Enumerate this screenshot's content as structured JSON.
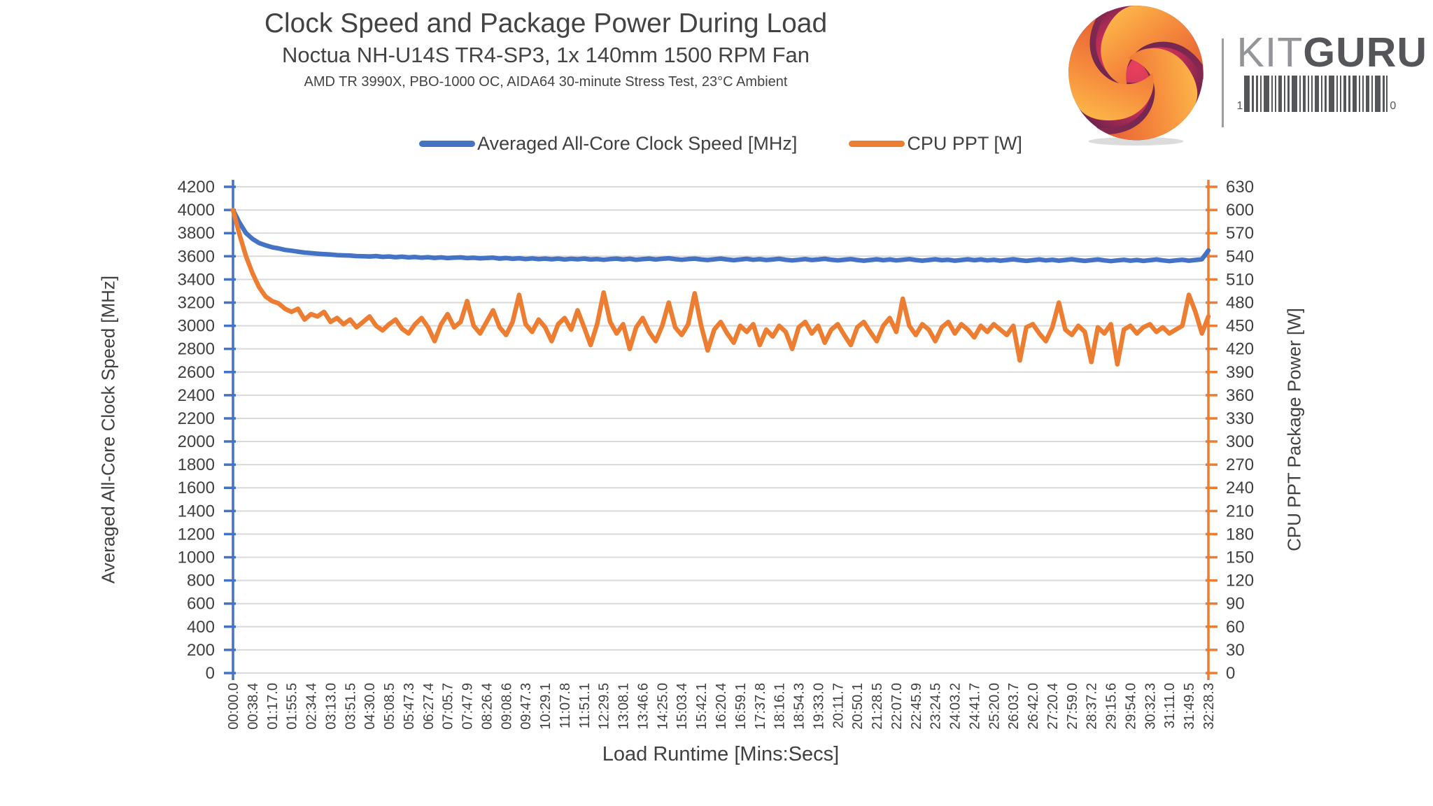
{
  "header": {
    "title": "Clock Speed and Package Power During Load",
    "subtitle": "Noctua NH-U14S TR4-SP3, 1x 140mm 1500 RPM Fan",
    "details": "AMD TR 3990X, PBO-1000 OC, AIDA64 30-minute Stress Test, 23°C Ambient"
  },
  "logo": {
    "brand_prefix": "KIT",
    "brand_suffix": "GURU",
    "barcode_left_digit": "1",
    "barcode_right_digit": "0"
  },
  "legend": [
    {
      "label": "Averaged All-Core Clock Speed [MHz]",
      "color": "#4472C4"
    },
    {
      "label": "CPU PPT [W]",
      "color": "#ED7D31"
    }
  ],
  "colors": {
    "clock_series": "#4472C4",
    "power_series": "#ED7D31",
    "gridline": "#D9D9D9",
    "tick_text": "#404040"
  },
  "chart_data": {
    "type": "line",
    "title": "Clock Speed and Package Power During Load",
    "grid": true,
    "legend_position": "top",
    "x_axis": {
      "label": "Load Runtime [Mins:Secs]",
      "tick_labels": [
        "00:00.0",
        "00:38.4",
        "01:17.0",
        "01:55.5",
        "02:34.4",
        "03:13.0",
        "03:51.5",
        "04:30.0",
        "05:08.5",
        "05:47.3",
        "06:27.4",
        "07:05.7",
        "07:47.9",
        "08:26.4",
        "09:08.6",
        "09:47.3",
        "10:29.1",
        "11:07.8",
        "11:51.1",
        "12:29.5",
        "13:08.1",
        "13:46.6",
        "14:25.0",
        "15:03.4",
        "15:42.1",
        "16:20.4",
        "16:59.1",
        "17:37.8",
        "18:16.1",
        "18:54.3",
        "19:33.0",
        "20:11.7",
        "20:50.1",
        "21:28.5",
        "22:07.0",
        "22:45.9",
        "23:24.5",
        "24:03.2",
        "24:41.7",
        "25:20.0",
        "26:03.7",
        "26:42.0",
        "27:20.4",
        "27:59.0",
        "28:37.2",
        "29:15.6",
        "29:54.0",
        "30:32.3",
        "31:11.0",
        "31:49.5",
        "32:28.3"
      ]
    },
    "y_left": {
      "label": "Averaged All-Core Clock Speed [MHz]",
      "min": 0,
      "max": 4200,
      "step": 200,
      "color": "#4472C4",
      "ticks": [
        4200,
        4000,
        3800,
        3600,
        3400,
        3200,
        3000,
        2800,
        2600,
        2400,
        2200,
        2000,
        1800,
        1600,
        1400,
        1200,
        1000,
        800,
        600,
        400,
        200,
        0
      ]
    },
    "y_right": {
      "label": "CPU PPT Package Power [W]",
      "min": 0,
      "max": 630,
      "step": 30,
      "color": "#ED7D31",
      "ticks": [
        630,
        600,
        570,
        540,
        510,
        480,
        450,
        420,
        390,
        360,
        330,
        300,
        270,
        240,
        210,
        180,
        150,
        120,
        90,
        60,
        30,
        0
      ]
    },
    "series": [
      {
        "name": "Averaged All-Core Clock Speed [MHz]",
        "axis": "left",
        "color": "#4472C4",
        "values": [
          4000,
          3890,
          3800,
          3750,
          3715,
          3695,
          3678,
          3668,
          3655,
          3648,
          3640,
          3632,
          3628,
          3622,
          3618,
          3615,
          3610,
          3608,
          3606,
          3602,
          3600,
          3598,
          3602,
          3595,
          3598,
          3592,
          3596,
          3590,
          3594,
          3588,
          3592,
          3586,
          3590,
          3584,
          3588,
          3590,
          3584,
          3587,
          3582,
          3585,
          3588,
          3580,
          3585,
          3578,
          3583,
          3576,
          3582,
          3575,
          3580,
          3574,
          3580,
          3572,
          3578,
          3574,
          3580,
          3572,
          3576,
          3570,
          3576,
          3580,
          3572,
          3578,
          3570,
          3575,
          3580,
          3572,
          3578,
          3583,
          3575,
          3570,
          3576,
          3580,
          3572,
          3568,
          3574,
          3580,
          3572,
          3566,
          3572,
          3578,
          3570,
          3575,
          3568,
          3572,
          3578,
          3570,
          3564,
          3570,
          3576,
          3568,
          3572,
          3578,
          3570,
          3565,
          3570,
          3576,
          3568,
          3562,
          3568,
          3574,
          3566,
          3572,
          3564,
          3570,
          3576,
          3568,
          3562,
          3568,
          3574,
          3566,
          3570,
          3562,
          3568,
          3574,
          3566,
          3572,
          3564,
          3570,
          3562,
          3568,
          3574,
          3566,
          3560,
          3566,
          3572,
          3564,
          3570,
          3562,
          3568,
          3574,
          3566,
          3560,
          3566,
          3572,
          3564,
          3558,
          3564,
          3570,
          3562,
          3568,
          3560,
          3566,
          3572,
          3564,
          3558,
          3564,
          3570,
          3562,
          3568,
          3574,
          3650
        ]
      },
      {
        "name": "CPU PPT [W]",
        "axis": "right",
        "color": "#ED7D31",
        "values": [
          600,
          568,
          540,
          518,
          500,
          488,
          482,
          479,
          472,
          468,
          472,
          458,
          465,
          462,
          468,
          455,
          460,
          452,
          458,
          448,
          455,
          462,
          450,
          444,
          452,
          458,
          446,
          440,
          452,
          460,
          448,
          430,
          452,
          465,
          448,
          455,
          482,
          450,
          440,
          455,
          470,
          448,
          438,
          455,
          490,
          452,
          442,
          458,
          448,
          430,
          452,
          460,
          445,
          470,
          448,
          425,
          452,
          493,
          455,
          440,
          452,
          420,
          448,
          460,
          442,
          430,
          450,
          480,
          448,
          438,
          452,
          492,
          450,
          418,
          445,
          455,
          440,
          428,
          450,
          442,
          452,
          425,
          445,
          436,
          450,
          442,
          420,
          448,
          455,
          440,
          450,
          428,
          445,
          452,
          438,
          425,
          448,
          455,
          442,
          430,
          450,
          460,
          442,
          485,
          450,
          438,
          452,
          445,
          430,
          448,
          455,
          440,
          452,
          445,
          435,
          450,
          442,
          452,
          445,
          438,
          450,
          405,
          448,
          452,
          440,
          430,
          448,
          480,
          445,
          438,
          450,
          442,
          403,
          448,
          440,
          452,
          400,
          445,
          450,
          440,
          448,
          452,
          442,
          448,
          440,
          445,
          450,
          490,
          468,
          440,
          462
        ]
      }
    ]
  }
}
